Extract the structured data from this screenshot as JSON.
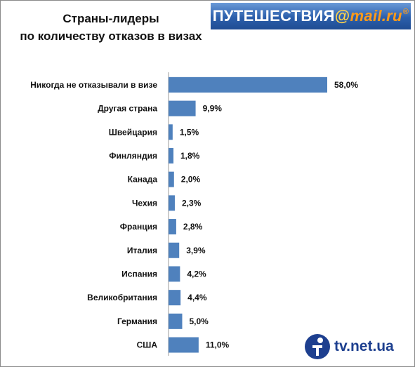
{
  "header": {
    "title_line1": "Страны-лидеры",
    "title_line2": "по количеству отказов в визах"
  },
  "logo": {
    "prefix": "ПУТЕШЕСТВИЯ",
    "at": "@",
    "domain": "mail.ru"
  },
  "watermark": {
    "text": "tv.net.ua"
  },
  "colors": {
    "bar": "#4f81bd",
    "logo_bg": "#2c5fab",
    "logo_accent": "#ff9a1a"
  },
  "chart_data": {
    "type": "bar",
    "orientation": "horizontal",
    "title": "Страны-лидеры по количеству отказов в визах",
    "categories": [
      "Никогда не отказывали в визе",
      "Другая страна",
      "Швейцария",
      "Финляндия",
      "Канада",
      "Чехия",
      "Франция",
      "Италия",
      "Испания",
      "Великобритания",
      "Германия",
      "США"
    ],
    "values": [
      58.0,
      9.9,
      1.5,
      1.8,
      2.0,
      2.3,
      2.8,
      3.9,
      4.2,
      4.4,
      5.0,
      11.0
    ],
    "value_labels": [
      "58,0%",
      "9,9%",
      "1,5%",
      "1,8%",
      "2,0%",
      "2,3%",
      "2,8%",
      "3,9%",
      "4,2%",
      "4,4%",
      "5,0%",
      "11,0%"
    ],
    "unit": "%",
    "xlim": [
      0,
      58.0
    ],
    "grid": false,
    "legend": "none"
  }
}
